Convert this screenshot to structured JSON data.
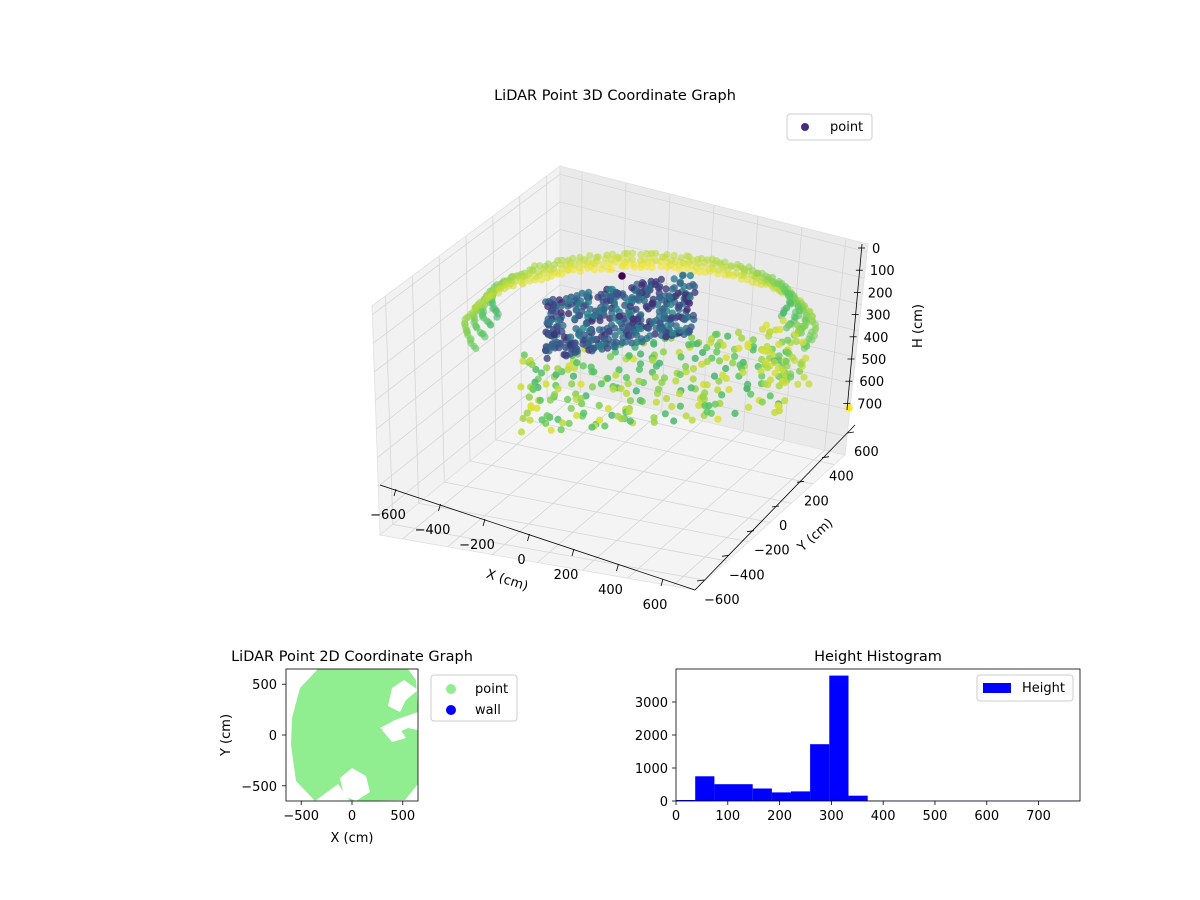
{
  "colors": {
    "point_green": "#90ee90",
    "wall_blue": "#0000ff",
    "hist_blue": "#0000ff",
    "viridis": [
      "#440154",
      "#3b528b",
      "#21918c",
      "#5ec962",
      "#fde725"
    ]
  },
  "chart_data": [
    {
      "type": "scatter",
      "projection": "3d",
      "title": "LiDAR Point 3D Coordinate Graph",
      "xlabel": "X (cm)",
      "ylabel": "Y (cm)",
      "zlabel": "H (cm)",
      "xticks": [
        "−600",
        "−400",
        "−200",
        "0",
        "200",
        "400",
        "600"
      ],
      "yticks": [
        "−600",
        "−400",
        "−200",
        "0",
        "200",
        "400",
        "600"
      ],
      "zticks": [
        "0",
        "100",
        "200",
        "300",
        "400",
        "500",
        "600",
        "700"
      ],
      "xlim": [
        -650,
        650
      ],
      "ylim": [
        -650,
        650
      ],
      "zlim": [
        0,
        750
      ],
      "z_inverted": true,
      "colormap": "viridis",
      "legend": [
        {
          "label": "point"
        }
      ],
      "legend_position": "upper right",
      "grid": true
    },
    {
      "type": "scatter",
      "title": "LiDAR Point 2D Coordinate Graph",
      "xlabel": "X (cm)",
      "ylabel": "Y (cm)",
      "xticks": [
        "−500",
        "0",
        "500"
      ],
      "yticks": [
        "500",
        "0",
        "−500"
      ],
      "xlim": [
        -650,
        650
      ],
      "ylim": [
        -650,
        650
      ],
      "series": [
        {
          "name": "point",
          "color": "#90ee90"
        },
        {
          "name": "wall",
          "color": "#0000ff"
        }
      ],
      "legend_position": "outside right"
    },
    {
      "type": "bar",
      "title": "Height Histogram",
      "xticks": [
        "0",
        "100",
        "200",
        "300",
        "400",
        "500",
        "600",
        "700"
      ],
      "yticks": [
        "0",
        "1000",
        "2000",
        "3000"
      ],
      "xlim": [
        0,
        780
      ],
      "ylim": [
        0,
        4000
      ],
      "bin_width": 37,
      "bins": [
        {
          "x0": 0,
          "value": 30
        },
        {
          "x0": 37,
          "value": 750
        },
        {
          "x0": 74,
          "value": 510
        },
        {
          "x0": 111,
          "value": 510
        },
        {
          "x0": 148,
          "value": 380
        },
        {
          "x0": 185,
          "value": 260
        },
        {
          "x0": 222,
          "value": 290
        },
        {
          "x0": 259,
          "value": 1720
        },
        {
          "x0": 296,
          "value": 3800
        },
        {
          "x0": 333,
          "value": 160
        },
        {
          "x0": 370,
          "value": 10
        },
        {
          "x0": 407,
          "value": 5
        },
        {
          "x0": 444,
          "value": 5
        },
        {
          "x0": 481,
          "value": 5
        },
        {
          "x0": 518,
          "value": 5
        },
        {
          "x0": 555,
          "value": 5
        },
        {
          "x0": 592,
          "value": 5
        },
        {
          "x0": 629,
          "value": 5
        },
        {
          "x0": 666,
          "value": 5
        },
        {
          "x0": 703,
          "value": 5
        },
        {
          "x0": 740,
          "value": 5
        }
      ],
      "legend": [
        {
          "label": "Height"
        }
      ],
      "legend_position": "upper right"
    }
  ]
}
